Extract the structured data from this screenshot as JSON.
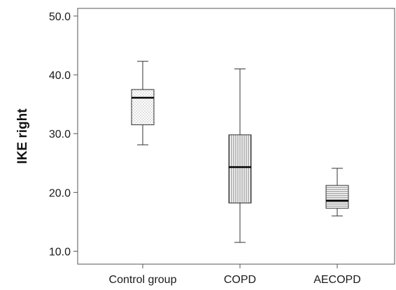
{
  "chart_data": {
    "type": "box",
    "title": "",
    "xlabel": "",
    "ylabel": "IKE right",
    "ylim": [
      7.8,
      51.3
    ],
    "yticks": [
      10.0,
      20.0,
      30.0,
      40.0,
      50.0
    ],
    "ytick_labels": [
      "10.0",
      "20.0",
      "30.0",
      "40.0",
      "50.0"
    ],
    "grid": false,
    "legend": "none",
    "categories": [
      "Control group",
      "COPD",
      "AECOPD"
    ],
    "boxes": [
      {
        "category": "Control group",
        "whisker_low": 28.1,
        "q1": 31.5,
        "median": 36.1,
        "q3": 37.5,
        "whisker_high": 42.3,
        "fill_pattern": "dots"
      },
      {
        "category": "COPD",
        "whisker_low": 11.5,
        "q1": 18.2,
        "median": 24.3,
        "q3": 29.8,
        "whisker_high": 41.0,
        "fill_pattern": "vertical-lines"
      },
      {
        "category": "AECOPD",
        "whisker_low": 16.0,
        "q1": 17.3,
        "median": 18.6,
        "q3": 21.2,
        "whisker_high": 24.1,
        "fill_pattern": "horizontal-lines"
      }
    ],
    "colors": {
      "axis": "#555555",
      "box_stroke": "#333333",
      "median": "#000000",
      "pattern": "#666666"
    }
  }
}
